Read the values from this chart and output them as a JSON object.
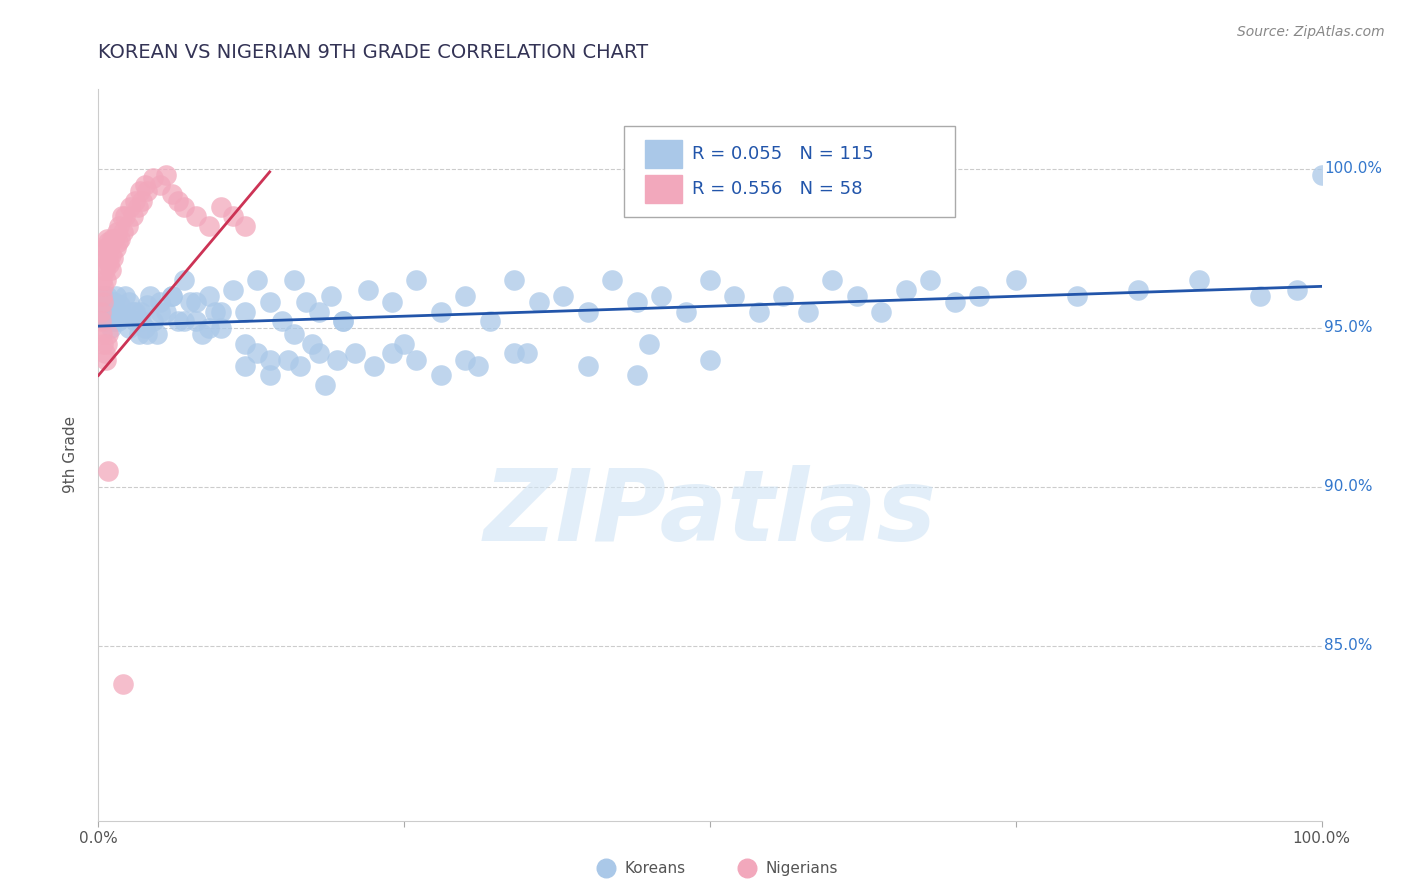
{
  "title": "KOREAN VS NIGERIAN 9TH GRADE CORRELATION CHART",
  "source_text": "Source: ZipAtlas.com",
  "ylabel": "9th Grade",
  "watermark": "ZIPatlas",
  "korean_color": "#aac8e8",
  "nigerian_color": "#f2a8bc",
  "korean_line_color": "#2255aa",
  "nigerian_line_color": "#cc3355",
  "legend_text_color": "#2255aa",
  "right_axis_color": "#3377cc",
  "background_color": "#ffffff",
  "title_color": "#333355",
  "source_color": "#888888",
  "ylabel_color": "#555555",
  "bottom_label_color": "#555555",
  "grid_color": "#cccccc",
  "xlim": [
    0.0,
    1.0
  ],
  "ylim": [
    0.795,
    1.025
  ],
  "yticks": [
    0.85,
    0.9,
    0.95,
    1.0
  ],
  "ytick_labels": [
    "85.0%",
    "90.0%",
    "95.0%",
    "100.0%"
  ],
  "xtick_positions": [
    0.0,
    0.25,
    0.5,
    0.75,
    1.0
  ],
  "xtick_labels": [
    "0.0%",
    "",
    "",
    "",
    "100.0%"
  ],
  "korean_trendline_x": [
    0.0,
    1.0
  ],
  "korean_trendline_y": [
    0.9505,
    0.963
  ],
  "nigerian_trendline_x": [
    0.0,
    0.14
  ],
  "nigerian_trendline_y": [
    0.935,
    0.999
  ],
  "korean_x": [
    0.003,
    0.004,
    0.004,
    0.005,
    0.005,
    0.006,
    0.007,
    0.008,
    0.009,
    0.01,
    0.011,
    0.012,
    0.013,
    0.014,
    0.015,
    0.016,
    0.018,
    0.02,
    0.022,
    0.025,
    0.028,
    0.03,
    0.033,
    0.035,
    0.038,
    0.04,
    0.042,
    0.045,
    0.048,
    0.05,
    0.055,
    0.06,
    0.065,
    0.07,
    0.075,
    0.08,
    0.085,
    0.09,
    0.095,
    0.1,
    0.11,
    0.12,
    0.13,
    0.14,
    0.15,
    0.16,
    0.17,
    0.18,
    0.19,
    0.2,
    0.22,
    0.24,
    0.26,
    0.28,
    0.3,
    0.32,
    0.34,
    0.36,
    0.38,
    0.4,
    0.42,
    0.44,
    0.46,
    0.48,
    0.5,
    0.52,
    0.54,
    0.56,
    0.58,
    0.6,
    0.62,
    0.64,
    0.66,
    0.68,
    0.7,
    0.72,
    0.75,
    0.8,
    0.85,
    0.9,
    0.95,
    0.98,
    1.0,
    0.025,
    0.03,
    0.035,
    0.04,
    0.05,
    0.06,
    0.07,
    0.08,
    0.09,
    0.1,
    0.12,
    0.14,
    0.16,
    0.18,
    0.2,
    0.25,
    0.3,
    0.35,
    0.4,
    0.45,
    0.12,
    0.13,
    0.14,
    0.155,
    0.165,
    0.175,
    0.185,
    0.195,
    0.21,
    0.225,
    0.24,
    0.26,
    0.28,
    0.31,
    0.34,
    0.44,
    0.5
  ],
  "korean_y": [
    0.957,
    0.954,
    0.96,
    0.952,
    0.958,
    0.955,
    0.96,
    0.957,
    0.953,
    0.95,
    0.955,
    0.952,
    0.958,
    0.96,
    0.955,
    0.952,
    0.957,
    0.954,
    0.96,
    0.95,
    0.955,
    0.952,
    0.948,
    0.955,
    0.95,
    0.957,
    0.96,
    0.952,
    0.948,
    0.958,
    0.955,
    0.96,
    0.952,
    0.965,
    0.958,
    0.952,
    0.948,
    0.96,
    0.955,
    0.95,
    0.962,
    0.955,
    0.965,
    0.958,
    0.952,
    0.965,
    0.958,
    0.955,
    0.96,
    0.952,
    0.962,
    0.958,
    0.965,
    0.955,
    0.96,
    0.952,
    0.965,
    0.958,
    0.96,
    0.955,
    0.965,
    0.958,
    0.96,
    0.955,
    0.965,
    0.96,
    0.955,
    0.96,
    0.955,
    0.965,
    0.96,
    0.955,
    0.962,
    0.965,
    0.958,
    0.96,
    0.965,
    0.96,
    0.962,
    0.965,
    0.96,
    0.962,
    0.998,
    0.958,
    0.955,
    0.952,
    0.948,
    0.955,
    0.96,
    0.952,
    0.958,
    0.95,
    0.955,
    0.945,
    0.94,
    0.948,
    0.942,
    0.952,
    0.945,
    0.94,
    0.942,
    0.938,
    0.945,
    0.938,
    0.942,
    0.935,
    0.94,
    0.938,
    0.945,
    0.932,
    0.94,
    0.942,
    0.938,
    0.942,
    0.94,
    0.935,
    0.938,
    0.942,
    0.935,
    0.94
  ],
  "nigerian_x": [
    0.002,
    0.003,
    0.003,
    0.004,
    0.004,
    0.005,
    0.005,
    0.005,
    0.006,
    0.006,
    0.007,
    0.007,
    0.008,
    0.008,
    0.009,
    0.009,
    0.01,
    0.01,
    0.011,
    0.012,
    0.013,
    0.014,
    0.015,
    0.016,
    0.017,
    0.018,
    0.019,
    0.02,
    0.022,
    0.024,
    0.026,
    0.028,
    0.03,
    0.032,
    0.034,
    0.036,
    0.038,
    0.04,
    0.045,
    0.05,
    0.055,
    0.06,
    0.065,
    0.07,
    0.08,
    0.09,
    0.1,
    0.11,
    0.12,
    0.002,
    0.003,
    0.004,
    0.005,
    0.006,
    0.007,
    0.008,
    0.008,
    0.02
  ],
  "nigerian_y": [
    0.955,
    0.96,
    0.965,
    0.958,
    0.963,
    0.968,
    0.972,
    0.975,
    0.965,
    0.97,
    0.975,
    0.978,
    0.972,
    0.977,
    0.97,
    0.975,
    0.968,
    0.973,
    0.978,
    0.972,
    0.978,
    0.975,
    0.98,
    0.977,
    0.982,
    0.978,
    0.985,
    0.98,
    0.985,
    0.982,
    0.988,
    0.985,
    0.99,
    0.988,
    0.993,
    0.99,
    0.995,
    0.993,
    0.997,
    0.995,
    0.998,
    0.992,
    0.99,
    0.988,
    0.985,
    0.982,
    0.988,
    0.985,
    0.982,
    0.952,
    0.948,
    0.945,
    0.942,
    0.94,
    0.945,
    0.948,
    0.905,
    0.838
  ]
}
